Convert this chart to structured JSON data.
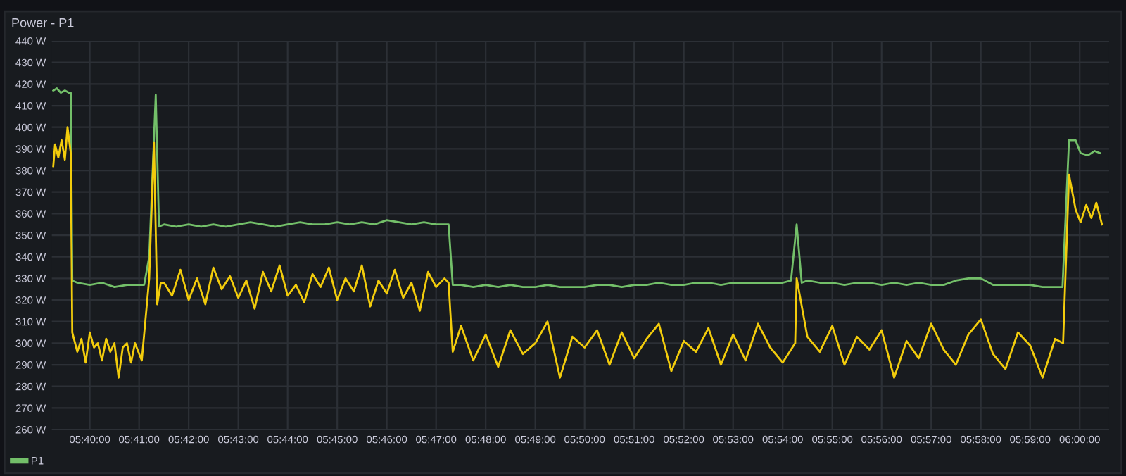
{
  "chart_data": {
    "type": "line",
    "title": "Power - P1",
    "xlim": [
      5.6539,
      6.0099
    ],
    "ylim": [
      260,
      440
    ],
    "xticks": [
      {
        "value": 5.6667,
        "label": "05:40:00"
      },
      {
        "value": 5.6833,
        "label": "05:41:00"
      },
      {
        "value": 5.7,
        "label": "05:42:00"
      },
      {
        "value": 5.7167,
        "label": "05:43:00"
      },
      {
        "value": 5.7333,
        "label": "05:44:00"
      },
      {
        "value": 5.75,
        "label": "05:45:00"
      },
      {
        "value": 5.7667,
        "label": "05:46:00"
      },
      {
        "value": 5.7833,
        "label": "05:47:00"
      },
      {
        "value": 5.8,
        "label": "05:48:00"
      },
      {
        "value": 5.8167,
        "label": "05:49:00"
      },
      {
        "value": 5.8333,
        "label": "05:50:00"
      },
      {
        "value": 5.85,
        "label": "05:51:00"
      },
      {
        "value": 5.8667,
        "label": "05:52:00"
      },
      {
        "value": 5.8833,
        "label": "05:53:00"
      },
      {
        "value": 5.9,
        "label": "05:54:00"
      },
      {
        "value": 5.9167,
        "label": "05:55:00"
      },
      {
        "value": 5.9333,
        "label": "05:56:00"
      },
      {
        "value": 5.95,
        "label": "05:57:00"
      },
      {
        "value": 5.9667,
        "label": "05:58:00"
      },
      {
        "value": 5.9833,
        "label": "05:59:00"
      },
      {
        "value": 6.0,
        "label": "06:00:00"
      }
    ],
    "yticks": [
      {
        "value": 260,
        "label": "260 W"
      },
      {
        "value": 270,
        "label": "270 W"
      },
      {
        "value": 280,
        "label": "280 W"
      },
      {
        "value": 290,
        "label": "290 W"
      },
      {
        "value": 300,
        "label": "300 W"
      },
      {
        "value": 310,
        "label": "310 W"
      },
      {
        "value": 320,
        "label": "320 W"
      },
      {
        "value": 330,
        "label": "330 W"
      },
      {
        "value": 340,
        "label": "340 W"
      },
      {
        "value": 350,
        "label": "350 W"
      },
      {
        "value": 360,
        "label": "360 W"
      },
      {
        "value": 370,
        "label": "370 W"
      },
      {
        "value": 380,
        "label": "380 W"
      },
      {
        "value": 390,
        "label": "390 W"
      },
      {
        "value": 400,
        "label": "400 W"
      },
      {
        "value": 410,
        "label": "410 W"
      },
      {
        "value": 420,
        "label": "420 W"
      },
      {
        "value": 430,
        "label": "430 W"
      },
      {
        "value": 440,
        "label": "440 W"
      }
    ],
    "grid": true,
    "legend": "bottom left",
    "marker": "none",
    "line_style": "solid",
    "series": [
      {
        "name": "P1",
        "color": "#73bf69",
        "x": [
          5.6544,
          5.6556,
          5.6569,
          5.6583,
          5.6597,
          5.6603,
          5.6608,
          5.6625,
          5.6667,
          5.6708,
          5.675,
          5.6792,
          5.685,
          5.6867,
          5.6889,
          5.69,
          5.6917,
          5.6958,
          5.7,
          5.7042,
          5.7083,
          5.7125,
          5.7167,
          5.7208,
          5.725,
          5.7292,
          5.7333,
          5.7375,
          5.7417,
          5.7458,
          5.75,
          5.7542,
          5.7583,
          5.7625,
          5.7667,
          5.7708,
          5.775,
          5.7792,
          5.7833,
          5.7875,
          5.7889,
          5.7917,
          5.7958,
          5.8,
          5.8042,
          5.8083,
          5.8125,
          5.8167,
          5.8208,
          5.825,
          5.8292,
          5.8333,
          5.8375,
          5.8417,
          5.8458,
          5.85,
          5.8542,
          5.8583,
          5.8625,
          5.8667,
          5.8708,
          5.875,
          5.8792,
          5.8833,
          5.8875,
          5.8917,
          5.8958,
          5.9,
          5.9028,
          5.9047,
          5.9064,
          5.9083,
          5.9125,
          5.9167,
          5.9208,
          5.925,
          5.9292,
          5.9333,
          5.9375,
          5.9417,
          5.9458,
          5.95,
          5.9542,
          5.9583,
          5.9625,
          5.9667,
          5.9708,
          5.975,
          5.9792,
          5.9833,
          5.9875,
          5.9942,
          5.9964,
          5.9986,
          6.0003,
          6.0028,
          6.005,
          6.0069
        ],
        "values": [
          417,
          418,
          416,
          417,
          416,
          416,
          329,
          328,
          327,
          328,
          326,
          327,
          327,
          340,
          415,
          354,
          355,
          354,
          355,
          354,
          355,
          354,
          355,
          356,
          355,
          354,
          355,
          356,
          355,
          355,
          356,
          355,
          356,
          355,
          357,
          356,
          355,
          356,
          355,
          355,
          327,
          327,
          326,
          327,
          326,
          327,
          326,
          326,
          327,
          326,
          326,
          326,
          327,
          327,
          326,
          327,
          327,
          328,
          327,
          327,
          328,
          328,
          327,
          328,
          328,
          328,
          328,
          328,
          329,
          355,
          328,
          329,
          328,
          328,
          327,
          328,
          328,
          327,
          328,
          327,
          328,
          327,
          327,
          329,
          330,
          330,
          327,
          327,
          327,
          327,
          326,
          326,
          394,
          394,
          388,
          387,
          389,
          388
        ]
      },
      {
        "color": "#f2cc0c",
        "x": [
          5.6544,
          5.655,
          5.6561,
          5.6572,
          5.6583,
          5.6592,
          5.6603,
          5.6608,
          5.6625,
          5.6639,
          5.6653,
          5.6667,
          5.6681,
          5.6694,
          5.6708,
          5.6722,
          5.6736,
          5.675,
          5.6764,
          5.6778,
          5.6792,
          5.6806,
          5.6819,
          5.6842,
          5.6867,
          5.6883,
          5.6894,
          5.6906,
          5.6917,
          5.6944,
          5.6972,
          5.7,
          5.7028,
          5.7056,
          5.7083,
          5.7111,
          5.7139,
          5.7167,
          5.7194,
          5.7222,
          5.725,
          5.7278,
          5.7306,
          5.7333,
          5.7361,
          5.7389,
          5.7417,
          5.7444,
          5.7472,
          5.75,
          5.7528,
          5.7556,
          5.7583,
          5.7611,
          5.7639,
          5.7667,
          5.7694,
          5.7722,
          5.775,
          5.7778,
          5.7806,
          5.7833,
          5.7861,
          5.7875,
          5.7889,
          5.7917,
          5.7958,
          5.8,
          5.8042,
          5.8083,
          5.8125,
          5.8167,
          5.8208,
          5.825,
          5.8292,
          5.8333,
          5.8375,
          5.8417,
          5.8458,
          5.85,
          5.8542,
          5.8583,
          5.8625,
          5.8667,
          5.8708,
          5.875,
          5.8792,
          5.8833,
          5.8875,
          5.8917,
          5.8958,
          5.9,
          5.9042,
          5.9047,
          5.9083,
          5.9125,
          5.9167,
          5.9208,
          5.925,
          5.9292,
          5.9333,
          5.9375,
          5.9417,
          5.9458,
          5.95,
          5.9542,
          5.9583,
          5.9625,
          5.9667,
          5.9708,
          5.975,
          5.9792,
          5.9833,
          5.9875,
          5.9917,
          5.9944,
          5.9964,
          5.9986,
          6.0003,
          6.0022,
          6.0039,
          6.0056,
          6.0075
        ],
        "values": [
          382,
          392,
          386,
          394,
          385,
          400,
          388,
          305,
          296,
          302,
          291,
          305,
          298,
          300,
          292,
          302,
          296,
          300,
          284,
          298,
          300,
          291,
          300,
          292,
          330,
          393,
          318,
          328,
          328,
          322,
          334,
          320,
          330,
          318,
          335,
          325,
          331,
          321,
          329,
          316,
          333,
          324,
          336,
          322,
          327,
          319,
          332,
          326,
          335,
          320,
          330,
          324,
          336,
          317,
          329,
          323,
          334,
          321,
          328,
          315,
          333,
          326,
          330,
          328,
          296,
          308,
          292,
          304,
          289,
          306,
          295,
          300,
          310,
          284,
          303,
          298,
          306,
          290,
          305,
          293,
          302,
          309,
          287,
          301,
          296,
          307,
          290,
          304,
          292,
          309,
          298,
          291,
          300,
          330,
          303,
          296,
          308,
          290,
          303,
          297,
          306,
          284,
          301,
          293,
          309,
          297,
          290,
          304,
          311,
          295,
          288,
          305,
          299,
          284,
          302,
          300,
          378,
          362,
          356,
          364,
          358,
          365,
          355
        ]
      }
    ]
  }
}
